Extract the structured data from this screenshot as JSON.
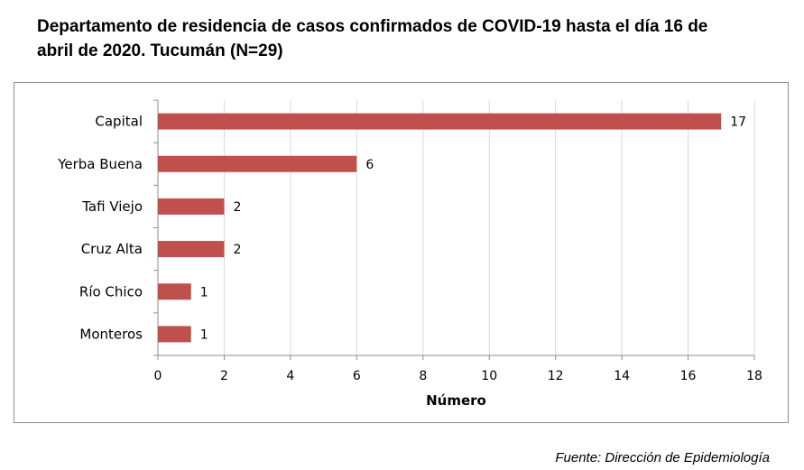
{
  "title": "Departamento de residencia de casos confirmados de COVID-19 hasta el día 16 de abril de 2020. Tucumán (N=29)",
  "source": "Fuente: Dirección de Epidemiología",
  "chart_data": {
    "type": "bar",
    "orientation": "horizontal",
    "title": "Departamento de residencia de casos confirmados de COVID-19 hasta el día 16 de abril de 2020. Tucumán (N=29)",
    "categories": [
      "Capital",
      "Yerba Buena",
      "Tafi Viejo",
      "Cruz Alta",
      "Río Chico",
      "Monteros"
    ],
    "values": [
      17,
      6,
      2,
      2,
      1,
      1
    ],
    "xlabel": "Número",
    "ylabel": "",
    "xlim": [
      0,
      18
    ],
    "xticks": [
      0,
      2,
      4,
      6,
      8,
      10,
      12,
      14,
      16,
      18
    ],
    "grid": true,
    "bar_color": "#c0504d",
    "grid_color": "#d9d9d9",
    "data_labels": true
  }
}
